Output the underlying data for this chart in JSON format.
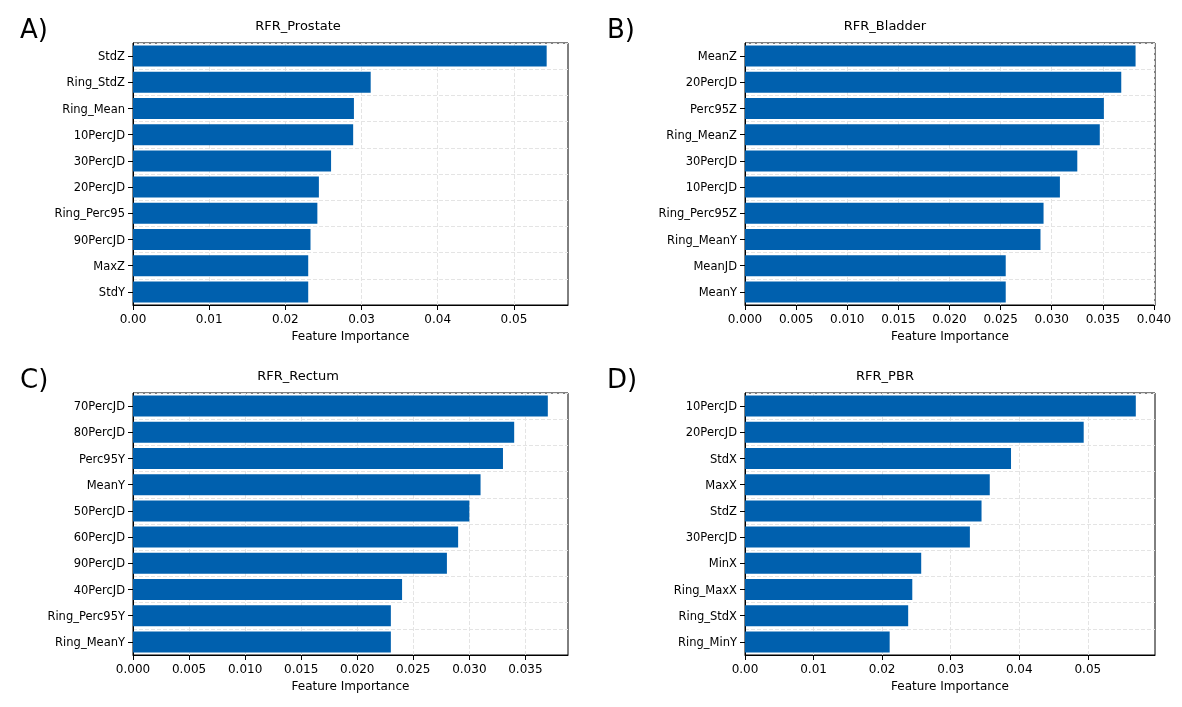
{
  "chart_data": [
    {
      "type": "bar",
      "orientation": "horizontal",
      "title": "RFR_Prostate",
      "xlabel": "Feature Importance",
      "annotations": [
        "A)"
      ],
      "grid": true,
      "color": "#0060ae",
      "categories": [
        "StdZ",
        "Ring_StdZ",
        "Ring_Mean",
        "10PercJD",
        "30PercJD",
        "20PercJD",
        "Ring_Perc95",
        "90PercJD",
        "MaxZ",
        "StdY"
      ],
      "values": [
        0.0543,
        0.0312,
        0.029,
        0.0289,
        0.026,
        0.0244,
        0.0242,
        0.0233,
        0.023,
        0.023
      ],
      "xlim": [
        0,
        0.0571
      ],
      "xticks": [
        {
          "value": 0,
          "label": "0.00"
        },
        {
          "value": 0.01,
          "label": "0.01"
        },
        {
          "value": 0.02,
          "label": "0.02"
        },
        {
          "value": 0.03,
          "label": "0.03"
        },
        {
          "value": 0.04,
          "label": "0.04"
        },
        {
          "value": 0.05,
          "label": "0.05"
        }
      ]
    },
    {
      "type": "bar",
      "orientation": "horizontal",
      "title": "RFR_Bladder",
      "xlabel": "Feature Importance",
      "annotations": [
        "B)"
      ],
      "grid": true,
      "color": "#0060ae",
      "categories": [
        "MeanZ",
        "20PercJD",
        "Perc95Z",
        "Ring_MeanZ",
        "30PercJD",
        "10PercJD",
        "Ring_Perc95Z",
        "Ring_MeanY",
        "MeanJD",
        "MeanY"
      ],
      "values": [
        0.0382,
        0.0368,
        0.0351,
        0.0347,
        0.0325,
        0.0308,
        0.0292,
        0.0289,
        0.0255,
        0.0255
      ],
      "xlim": [
        0,
        0.0401
      ],
      "xticks": [
        {
          "value": 0,
          "label": "0.000"
        },
        {
          "value": 0.005,
          "label": "0.005"
        },
        {
          "value": 0.01,
          "label": "0.010"
        },
        {
          "value": 0.015,
          "label": "0.015"
        },
        {
          "value": 0.02,
          "label": "0.020"
        },
        {
          "value": 0.025,
          "label": "0.025"
        },
        {
          "value": 0.03,
          "label": "0.030"
        },
        {
          "value": 0.035,
          "label": "0.035"
        },
        {
          "value": 0.04,
          "label": "0.040"
        }
      ]
    },
    {
      "type": "bar",
      "orientation": "horizontal",
      "title": "RFR_Rectum",
      "xlabel": "Feature Importance",
      "annotations": [
        "C)"
      ],
      "grid": true,
      "color": "#0060ae",
      "categories": [
        "70PercJD",
        "80PercJD",
        "Perc95Y",
        "MeanY",
        "50PercJD",
        "60PercJD",
        "90PercJD",
        "40PercJD",
        "Ring_Perc95Y",
        "Ring_MeanY"
      ],
      "values": [
        0.037,
        0.034,
        0.033,
        0.031,
        0.03,
        0.029,
        0.028,
        0.024,
        0.023,
        0.023
      ],
      "xlim": [
        0,
        0.0388
      ],
      "xticks": [
        {
          "value": 0,
          "label": "0.000"
        },
        {
          "value": 0.005,
          "label": "0.005"
        },
        {
          "value": 0.01,
          "label": "0.010"
        },
        {
          "value": 0.015,
          "label": "0.015"
        },
        {
          "value": 0.02,
          "label": "0.020"
        },
        {
          "value": 0.025,
          "label": "0.025"
        },
        {
          "value": 0.03,
          "label": "0.030"
        },
        {
          "value": 0.035,
          "label": "0.035"
        }
      ]
    },
    {
      "type": "bar",
      "orientation": "horizontal",
      "title": "RFR_PBR",
      "xlabel": "Feature Importance",
      "annotations": [
        "D)"
      ],
      "grid": true,
      "color": "#0060ae",
      "categories": [
        "10PercJD",
        "20PercJD",
        "StdX",
        "MaxX",
        "StdZ",
        "30PercJD",
        "MinX",
        "Ring_MaxX",
        "Ring_StdX",
        "Ring_MinY"
      ],
      "values": [
        0.057,
        0.0494,
        0.0388,
        0.0357,
        0.0345,
        0.0328,
        0.0257,
        0.0244,
        0.0238,
        0.0211
      ],
      "xlim": [
        0,
        0.0598
      ],
      "xticks": [
        {
          "value": 0,
          "label": "0.00"
        },
        {
          "value": 0.01,
          "label": "0.01"
        },
        {
          "value": 0.02,
          "label": "0.02"
        },
        {
          "value": 0.03,
          "label": "0.03"
        },
        {
          "value": 0.04,
          "label": "0.04"
        },
        {
          "value": 0.05,
          "label": "0.05"
        }
      ]
    }
  ]
}
